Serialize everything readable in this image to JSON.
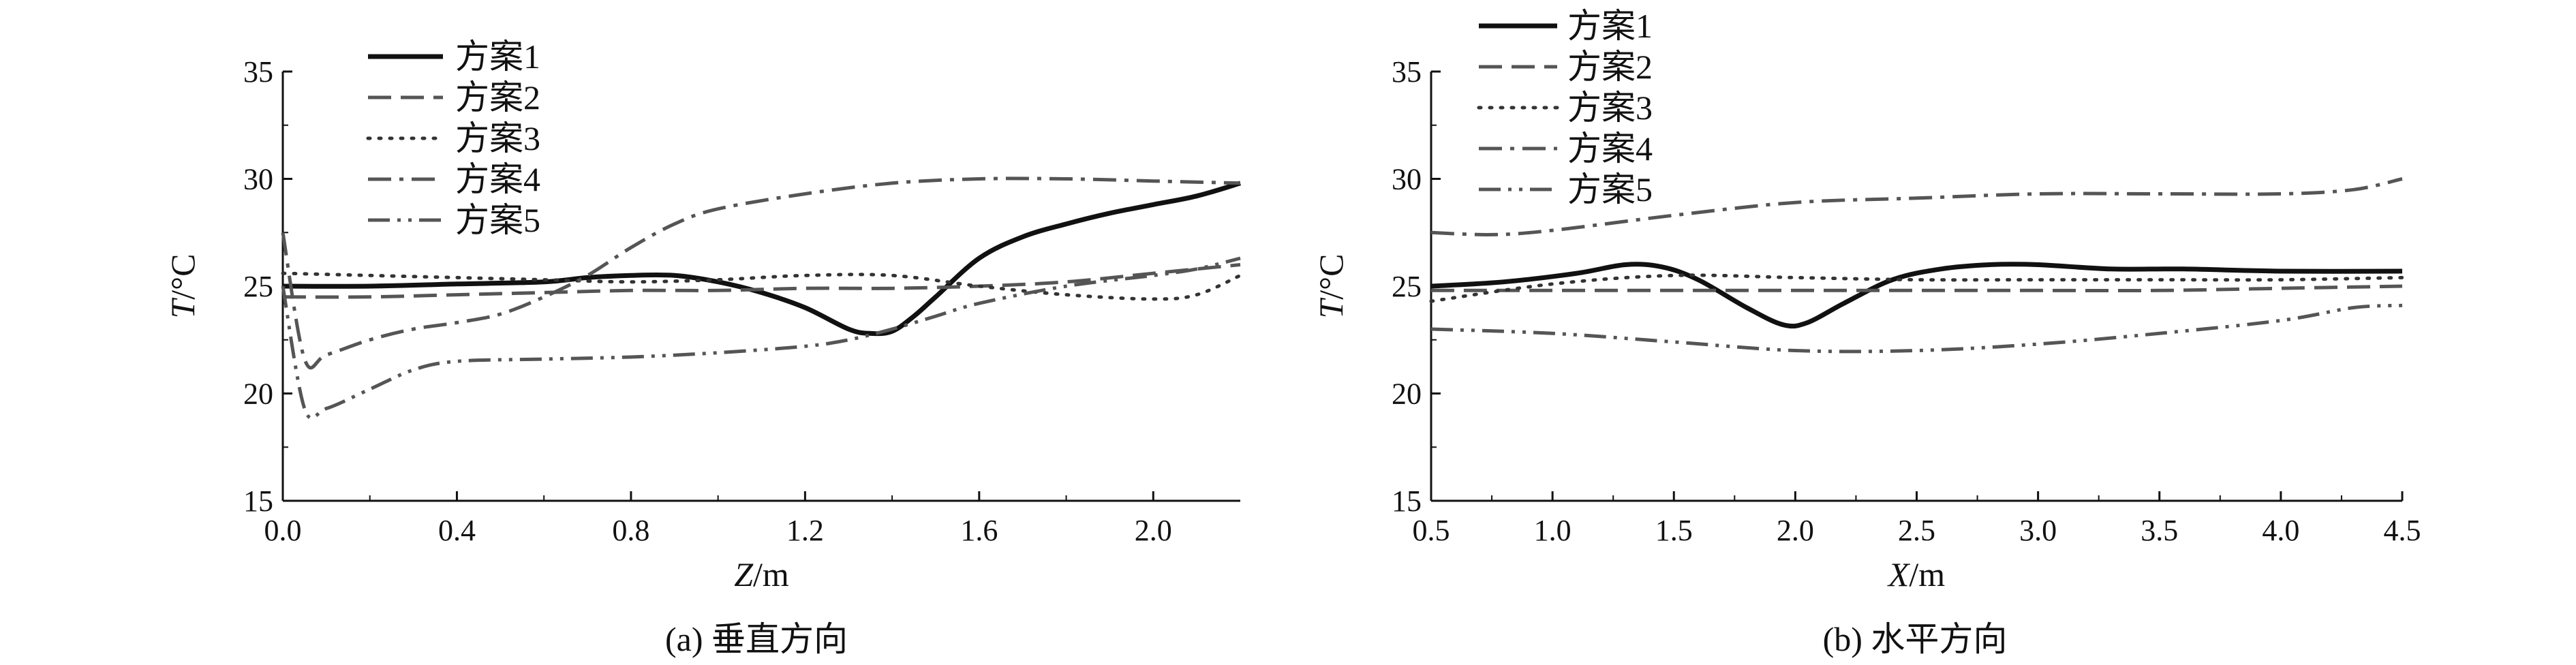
{
  "chart_data": [
    {
      "type": "line",
      "caption": "(a) 垂直方向",
      "xlabel_var": "Z",
      "xlabel_unit": "/m",
      "ylabel_var": "T",
      "ylabel_unit": "/°C",
      "xlim": [
        0,
        2.2
      ],
      "ylim": [
        15,
        35
      ],
      "xticks": [
        0.0,
        0.4,
        0.8,
        1.2,
        1.6,
        2.0
      ],
      "xtick_labels": [
        "0.0",
        "0.4",
        "0.8",
        "1.2",
        "1.6",
        "2.0"
      ],
      "yticks": [
        15,
        20,
        25,
        30,
        35
      ],
      "ytick_labels": [
        "15",
        "20",
        "25",
        "30",
        "35"
      ],
      "legend_position": "top-left",
      "series": [
        {
          "name": "方案1",
          "style": "solid",
          "color": "#111111",
          "x": [
            0.0,
            0.2,
            0.4,
            0.6,
            0.7,
            0.8,
            0.9,
            1.0,
            1.1,
            1.2,
            1.3,
            1.35,
            1.4,
            1.45,
            1.5,
            1.6,
            1.7,
            1.8,
            1.9,
            2.0,
            2.1,
            2.2
          ],
          "y": [
            25.0,
            25.0,
            25.1,
            25.2,
            25.4,
            25.5,
            25.5,
            25.2,
            24.7,
            24.0,
            23.0,
            22.8,
            22.9,
            23.6,
            24.5,
            26.3,
            27.3,
            27.9,
            28.4,
            28.8,
            29.2,
            29.8
          ]
        },
        {
          "name": "方案2",
          "style": "dashed",
          "color": "#555555",
          "x": [
            0.0,
            0.2,
            0.4,
            0.6,
            0.8,
            1.0,
            1.2,
            1.4,
            1.6,
            1.8,
            2.0,
            2.2
          ],
          "y": [
            24.5,
            24.5,
            24.6,
            24.7,
            24.8,
            24.8,
            24.9,
            24.9,
            25.0,
            25.2,
            25.6,
            26.0
          ]
        },
        {
          "name": "方案3",
          "style": "dotted",
          "color": "#333333",
          "x": [
            0.0,
            0.2,
            0.4,
            0.6,
            0.8,
            1.0,
            1.2,
            1.4,
            1.6,
            1.8,
            2.0,
            2.1,
            2.2
          ],
          "y": [
            25.6,
            25.5,
            25.4,
            25.3,
            25.2,
            25.3,
            25.5,
            25.5,
            25.0,
            24.6,
            24.4,
            24.6,
            25.5
          ]
        },
        {
          "name": "方案4",
          "style": "dashdot",
          "color": "#555555",
          "x": [
            0.0,
            0.05,
            0.1,
            0.2,
            0.3,
            0.4,
            0.5,
            0.6,
            0.7,
            0.8,
            0.9,
            1.0,
            1.2,
            1.4,
            1.6,
            1.8,
            2.0,
            2.2
          ],
          "y": [
            27.5,
            21.6,
            21.8,
            22.5,
            23.0,
            23.3,
            23.7,
            24.5,
            25.5,
            26.8,
            27.9,
            28.6,
            29.3,
            29.8,
            30.0,
            30.0,
            29.9,
            29.8
          ]
        },
        {
          "name": "方案5",
          "style": "dashdotdot",
          "color": "#555555",
          "x": [
            0.0,
            0.05,
            0.1,
            0.2,
            0.3,
            0.4,
            0.6,
            0.8,
            1.0,
            1.2,
            1.3,
            1.4,
            1.5,
            1.6,
            1.8,
            2.0,
            2.1,
            2.2
          ],
          "y": [
            25.0,
            19.3,
            19.3,
            20.2,
            21.1,
            21.5,
            21.6,
            21.7,
            21.9,
            22.2,
            22.5,
            23.0,
            23.6,
            24.2,
            25.0,
            25.5,
            25.8,
            26.3
          ]
        }
      ]
    },
    {
      "type": "line",
      "caption": "(b) 水平方向",
      "xlabel_var": "X",
      "xlabel_unit": "/m",
      "ylabel_var": "T",
      "ylabel_unit": "/°C",
      "xlim": [
        0.5,
        4.5
      ],
      "ylim": [
        15,
        35
      ],
      "xticks": [
        0.5,
        1.0,
        1.5,
        2.0,
        2.5,
        3.0,
        3.5,
        4.0,
        4.5
      ],
      "xtick_labels": [
        "0.5",
        "1.0",
        "1.5",
        "2.0",
        "2.5",
        "3.0",
        "3.5",
        "4.0",
        "4.5"
      ],
      "yticks": [
        15,
        20,
        25,
        30,
        35
      ],
      "ytick_labels": [
        "15",
        "20",
        "25",
        "30",
        "35"
      ],
      "legend_position": "top-left",
      "series": [
        {
          "name": "方案1",
          "style": "solid",
          "color": "#111111",
          "x": [
            0.5,
            0.8,
            1.1,
            1.3,
            1.45,
            1.6,
            1.8,
            1.95,
            2.05,
            2.2,
            2.4,
            2.6,
            2.8,
            3.0,
            3.3,
            3.6,
            4.0,
            4.5
          ],
          "y": [
            25.0,
            25.2,
            25.6,
            26.0,
            25.9,
            25.3,
            24.0,
            23.2,
            23.3,
            24.2,
            25.3,
            25.8,
            26.0,
            26.0,
            25.8,
            25.8,
            25.7,
            25.7
          ]
        },
        {
          "name": "方案2",
          "style": "dashed",
          "color": "#555555",
          "x": [
            0.5,
            1.0,
            1.5,
            2.0,
            2.5,
            3.0,
            3.5,
            4.0,
            4.5
          ],
          "y": [
            24.8,
            24.8,
            24.8,
            24.8,
            24.8,
            24.8,
            24.8,
            24.9,
            25.0
          ]
        },
        {
          "name": "方案3",
          "style": "dotted",
          "color": "#333333",
          "x": [
            0.5,
            1.0,
            1.5,
            2.0,
            2.5,
            3.0,
            3.5,
            4.0,
            4.5
          ],
          "y": [
            24.3,
            25.1,
            25.5,
            25.4,
            25.3,
            25.3,
            25.3,
            25.3,
            25.4
          ]
        },
        {
          "name": "方案4",
          "style": "dashdot",
          "color": "#555555",
          "x": [
            0.5,
            0.75,
            1.0,
            1.5,
            2.0,
            2.5,
            3.0,
            3.5,
            4.0,
            4.3,
            4.5
          ],
          "y": [
            27.5,
            27.4,
            27.6,
            28.3,
            28.9,
            29.1,
            29.3,
            29.3,
            29.3,
            29.5,
            30.0
          ]
        },
        {
          "name": "方案5",
          "style": "dashdotdot",
          "color": "#555555",
          "x": [
            0.5,
            1.0,
            1.5,
            2.0,
            2.5,
            3.0,
            3.5,
            4.0,
            4.3,
            4.5
          ],
          "y": [
            23.0,
            22.8,
            22.4,
            22.0,
            22.0,
            22.3,
            22.8,
            23.4,
            24.0,
            24.1
          ]
        }
      ]
    }
  ]
}
